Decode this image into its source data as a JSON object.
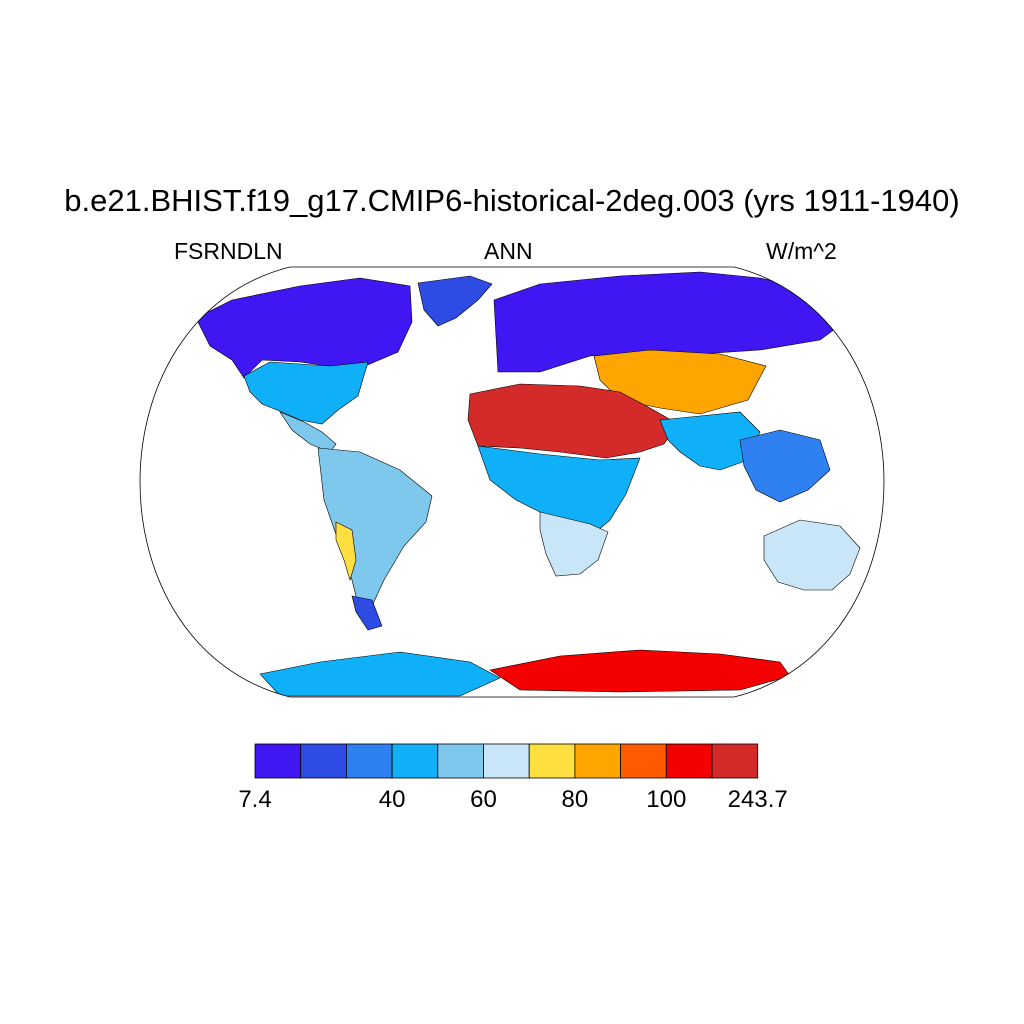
{
  "figure": {
    "title": "b.e21.BHIST.f19_g17.CMIP6-historical-2deg.003 (yrs 1911-1940)",
    "left_label": "FSRNDLN",
    "center_label": "ANN",
    "right_label": "W/m^2"
  },
  "map": {
    "projection": "robinson",
    "coastlines": true,
    "ocean_masked": true,
    "regions": [
      {
        "name": "greenland",
        "level": 1
      },
      {
        "name": "north-america-north",
        "level": 0
      },
      {
        "name": "north-america-south",
        "level": 3
      },
      {
        "name": "central-america",
        "level": 4
      },
      {
        "name": "south-america",
        "level": 4
      },
      {
        "name": "andes",
        "level": 6
      },
      {
        "name": "patagonia",
        "level": 1
      },
      {
        "name": "eurasia-north",
        "level": 0
      },
      {
        "name": "central-asia",
        "level": 7
      },
      {
        "name": "sahara-arabia",
        "level": 10
      },
      {
        "name": "africa-central",
        "level": 3
      },
      {
        "name": "southern-africa",
        "level": 5
      },
      {
        "name": "south-asia",
        "level": 3
      },
      {
        "name": "southeast-asia",
        "level": 2
      },
      {
        "name": "australia",
        "level": 5
      },
      {
        "name": "antarctica-west",
        "level": 3
      },
      {
        "name": "antarctica-east",
        "level": 9
      }
    ]
  },
  "colorbar": {
    "colors": [
      "#4016f2",
      "#2e4be4",
      "#2f80f0",
      "#0fb0f8",
      "#7ec8ee",
      "#c8e6f8",
      "#ffe040",
      "#ffa500",
      "#ff5a00",
      "#f40000",
      "#d42a2a"
    ],
    "tick_labels": [
      "7.4",
      "40",
      "60",
      "80",
      "100",
      "243.7"
    ],
    "tick_boundaries": [
      0,
      3,
      5,
      7,
      9,
      11
    ]
  }
}
